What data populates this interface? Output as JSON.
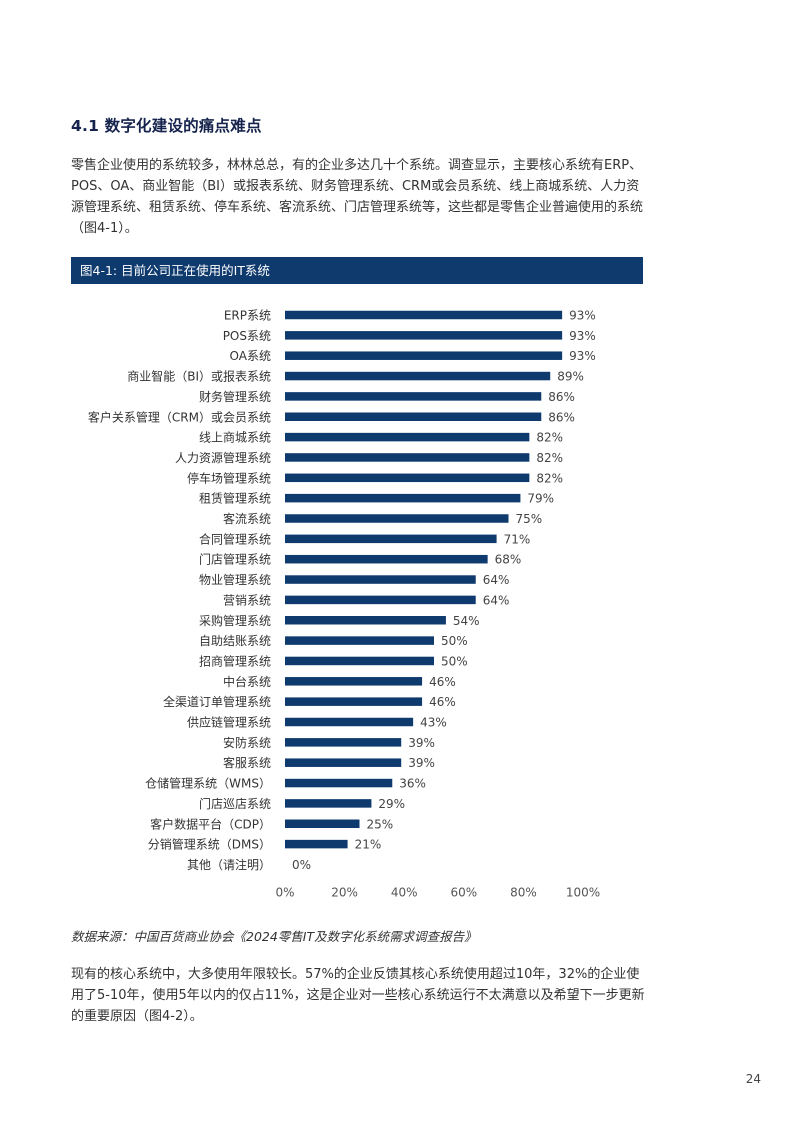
{
  "section": {
    "title": "4.1 数字化建设的痛点难点",
    "intro": "零售企业使用的系统较多，林林总总，有的企业多达几十个系统。调查显示，主要核心系统有ERP、POS、OA、商业智能（BI）或报表系统、财务管理系统、CRM或会员系统、线上商城系统、人力资源管理系统、租赁系统、停车系统、客流系统、门店管理系统等，这些都是零售企业普遍使用的系统（图4-1）。"
  },
  "figure": {
    "title": "图4-1: 目前公司正在使用的IT系统",
    "header_color": "#0f3a6e",
    "bar_color": "#0f3a6e"
  },
  "chart_data": {
    "type": "bar",
    "orientation": "horizontal",
    "categories": [
      "ERP系统",
      "POS系统",
      "OA系统",
      "商业智能（BI）或报表系统",
      "财务管理系统",
      "客户关系管理（CRM）或会员系统",
      "线上商城系统",
      "人力资源管理系统",
      "停车场管理系统",
      "租赁管理系统",
      "客流系统",
      "合同管理系统",
      "门店管理系统",
      "物业管理系统",
      "营销系统",
      "采购管理系统",
      "自助结账系统",
      "招商管理系统",
      "中台系统",
      "全渠道订单管理系统",
      "供应链管理系统",
      "安防系统",
      "客服系统",
      "仓储管理系统（WMS）",
      "门店巡店系统",
      "客户数据平台（CDP）",
      "分销管理系统（DMS）",
      "其他（请注明）"
    ],
    "values": [
      93,
      93,
      93,
      89,
      86,
      86,
      82,
      82,
      82,
      79,
      75,
      71,
      68,
      64,
      64,
      54,
      50,
      50,
      46,
      46,
      43,
      39,
      39,
      36,
      29,
      25,
      21,
      0
    ],
    "value_labels": [
      "93%",
      "93%",
      "93%",
      "89%",
      "86%",
      "86%",
      "82%",
      "82%",
      "82%",
      "79%",
      "75%",
      "71%",
      "68%",
      "64%",
      "64%",
      "54%",
      "50%",
      "50%",
      "46%",
      "46%",
      "43%",
      "39%",
      "39%",
      "36%",
      "29%",
      "25%",
      "21%",
      "0%"
    ],
    "xlim": [
      0,
      100
    ],
    "x_ticks": [
      "0%",
      "20%",
      "40%",
      "60%",
      "80%",
      "100%"
    ],
    "grid": false,
    "legend": "none"
  },
  "source": "数据来源：中国百货商业协会《2024零售IT及数字化系统需求调查报告》",
  "paragraph2": "现有的核心系统中，大多使用年限较长。57%的企业反馈其核心系统使用超过10年，32%的企业使用了5-10年，使用5年以内的仅占11%，这是企业对一些核心系统运行不太满意以及希望下一步更新的重要原因（图4-2）。",
  "page_number": "24"
}
